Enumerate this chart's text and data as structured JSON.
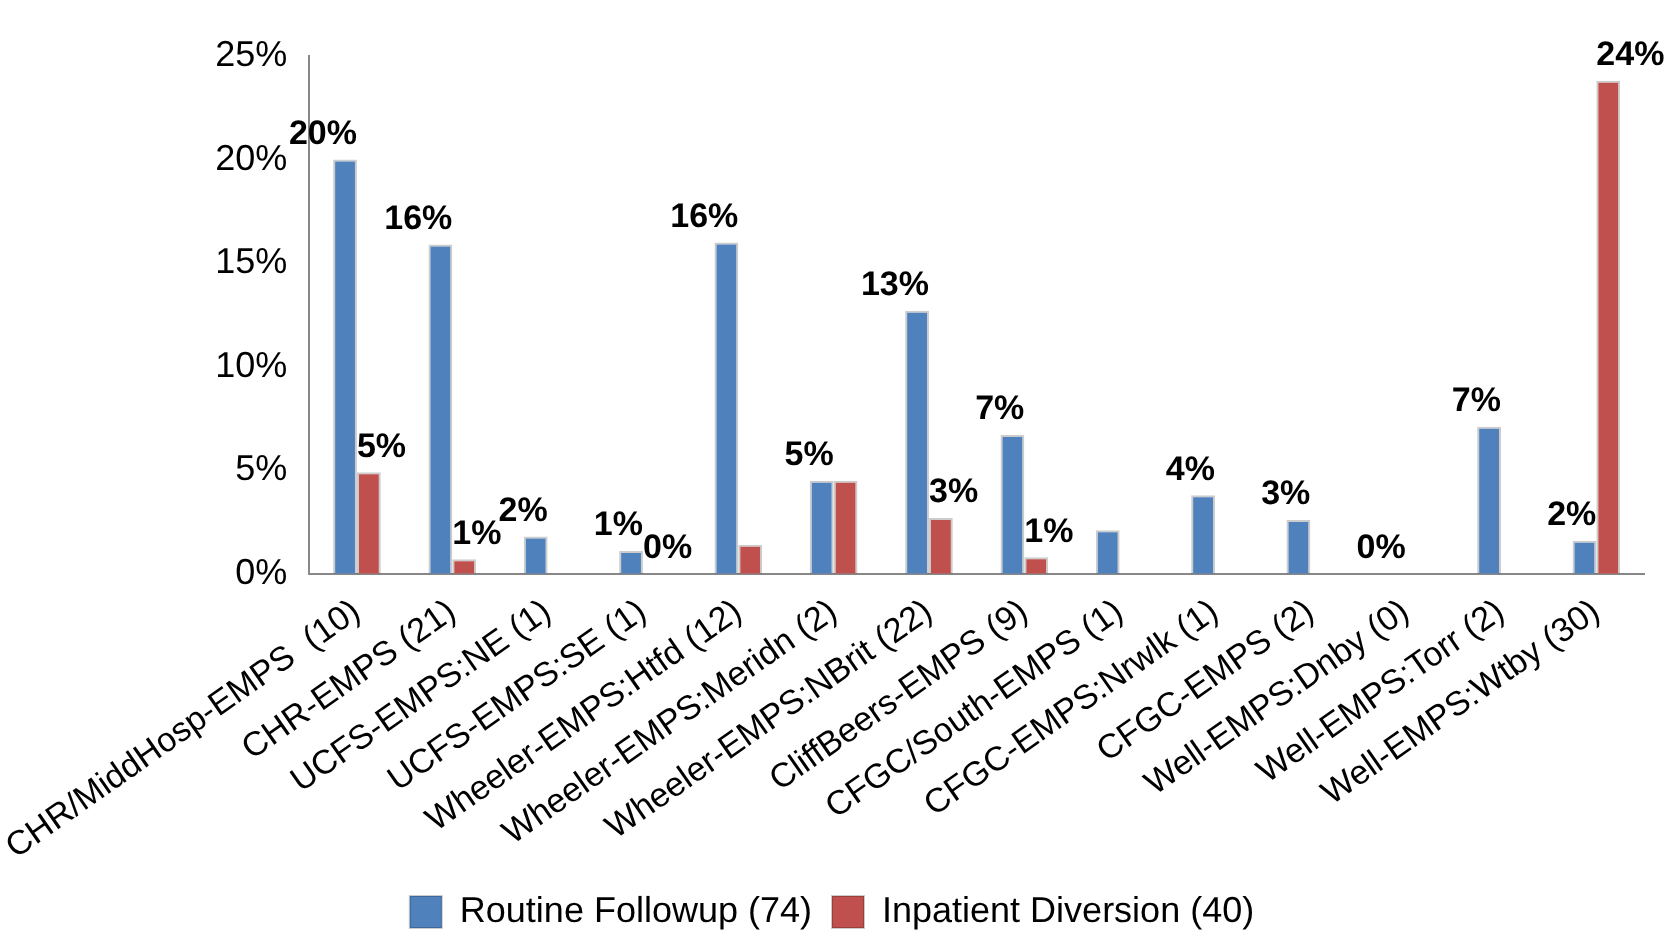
{
  "chart_data": {
    "type": "bar",
    "categories": [
      "CHR/MiddHosp-EMPS  (10)",
      "CHR-EMPS (21)",
      "UCFS-EMPS:NE (1)",
      "UCFS-EMPS:SE (1)",
      "Wheeler-EMPS:Htfd (12)",
      "Wheeler-EMPS:Meridn (2)",
      "Wheeler-EMPS:NBrit (22)",
      "CliffBeers-EMPS (9)",
      "CFGC/South-EMPS (1)",
      "CFGC-EMPS:Nrwlk (1)",
      "CFGC-EMPS (2)",
      "Well-EMPS:Dnby (0)",
      "Well-EMPS:Torr (2)",
      "Well-EMPS:Wtby (30)"
    ],
    "series": [
      {
        "name": "Routine Followup (74)",
        "color": "#4f81bd",
        "values": [
          20,
          15.9,
          1.8,
          1.1,
          16,
          4.5,
          12.7,
          6.7,
          2.1,
          3.8,
          2.6,
          0,
          7.1,
          1.6
        ],
        "value_labels": [
          "20%",
          "16%",
          "2%",
          "1%",
          "16%",
          "5%",
          "13%",
          "7%",
          null,
          "4%",
          "3%",
          "0%",
          "7%",
          "2%"
        ]
      },
      {
        "name": "Inpatient Diversion (40)",
        "color": "#c0504d",
        "values": [
          4.9,
          0.7,
          0,
          0,
          1.4,
          4.5,
          2.7,
          0.8,
          0,
          0,
          0,
          0,
          0,
          23.8
        ],
        "value_labels": [
          "5%",
          "1%",
          null,
          "0%",
          null,
          null,
          "3%",
          "1%",
          null,
          null,
          null,
          null,
          null,
          "24%"
        ]
      }
    ],
    "ylim": [
      0,
      25
    ],
    "yticks": [
      {
        "value": 0,
        "label": "0%"
      },
      {
        "value": 5,
        "label": "5%"
      },
      {
        "value": 10,
        "label": "10%"
      },
      {
        "value": 15,
        "label": "15%"
      },
      {
        "value": 20,
        "label": "20%"
      },
      {
        "value": 25,
        "label": "25%"
      }
    ],
    "grid": false,
    "legend": "bottom"
  }
}
